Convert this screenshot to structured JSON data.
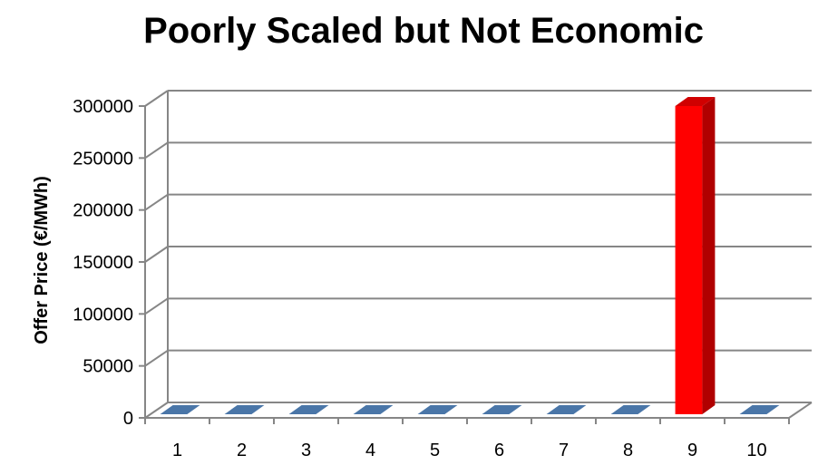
{
  "chart_data": {
    "type": "bar",
    "title": "Poorly Scaled but Not Economic",
    "xlabel": "",
    "ylabel": "Offer Price (€/MWh)",
    "categories": [
      "1",
      "2",
      "3",
      "4",
      "5",
      "6",
      "7",
      "8",
      "9",
      "10"
    ],
    "values": [
      0,
      0,
      0,
      0,
      0,
      0,
      0,
      0,
      300000,
      0
    ],
    "ylim": [
      0,
      300000
    ],
    "yticks": [
      0,
      50000,
      100000,
      150000,
      200000,
      250000,
      300000
    ],
    "grid": true,
    "three_d": true,
    "legend": "none",
    "colors": {
      "default_bar": "#4F81BD",
      "highlight_bar": "#FF0000",
      "highlight_index": 8,
      "grid": "#868686"
    }
  }
}
